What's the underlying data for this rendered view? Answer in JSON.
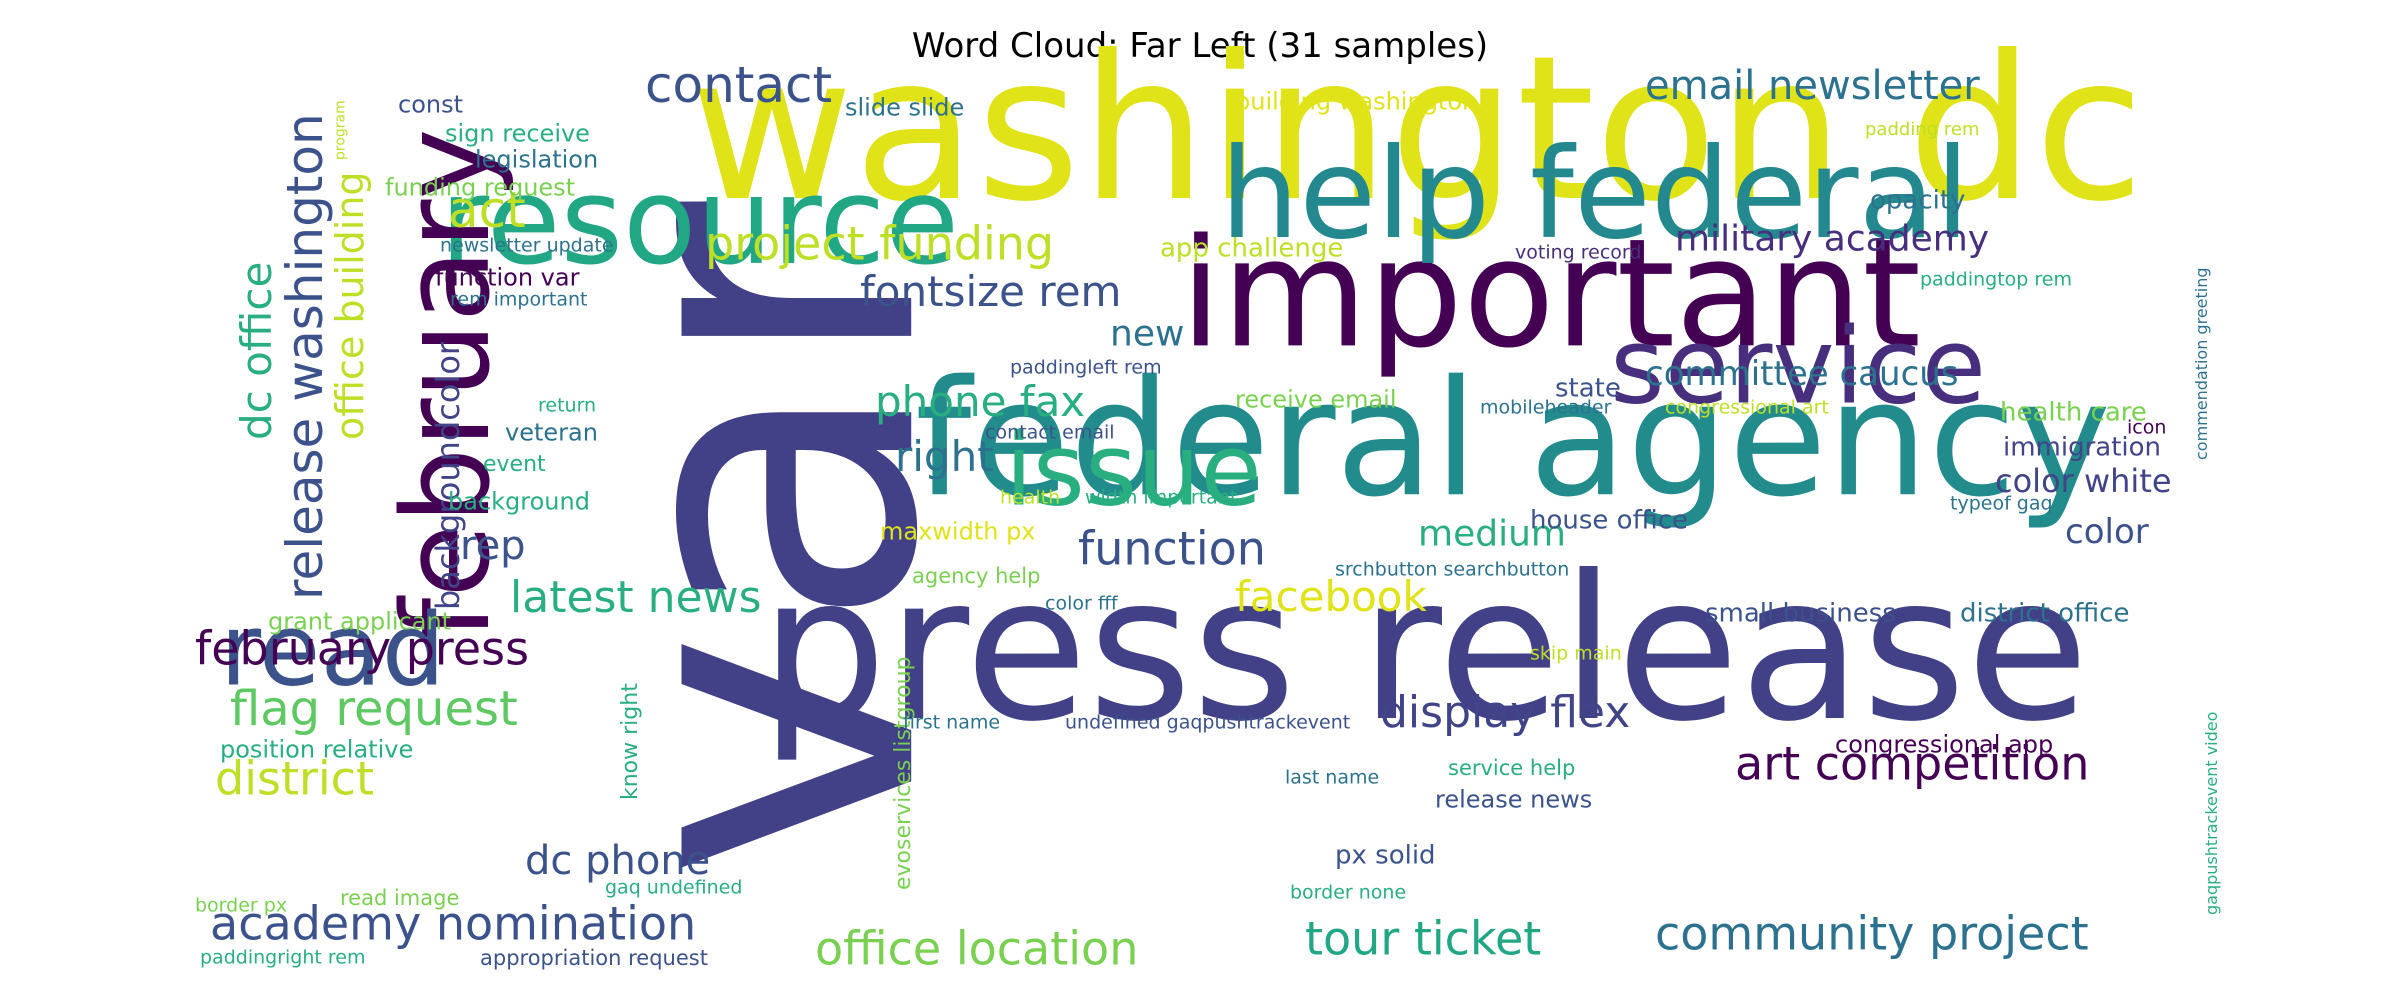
{
  "title": "Word Cloud: Far Left (31 samples)",
  "palette": {
    "p1": "#440154",
    "p2": "#472f7d",
    "p3": "#3b528b",
    "p4": "#2c728e",
    "p5": "#21918c",
    "p6": "#28ae80",
    "p7": "#5ec962",
    "p8": "#addc30",
    "p9": "#dfe318"
  },
  "words": [
    {
      "text": "var",
      "color": "#424086"
    },
    {
      "text": "washington dc",
      "color": "#dfe318"
    },
    {
      "text": "press release",
      "color": "#424086"
    },
    {
      "text": "federal agency",
      "color": "#228c8d"
    },
    {
      "text": "important",
      "color": "#440154"
    },
    {
      "text": "help federal",
      "color": "#23898e"
    },
    {
      "text": "resource",
      "color": "#22a785"
    },
    {
      "text": "february",
      "color": "#440154"
    },
    {
      "text": "service",
      "color": "#472f7d"
    },
    {
      "text": "issue",
      "color": "#29af7f"
    },
    {
      "text": "read",
      "color": "#3b528b"
    },
    {
      "text": "release washington",
      "color": "#3b528b"
    },
    {
      "text": "dc office",
      "color": "#28ae80"
    },
    {
      "text": "office building",
      "color": "#bddf26"
    },
    {
      "text": "backgroundcolor",
      "color": "#414487"
    },
    {
      "text": "contact",
      "color": "#3b528b"
    },
    {
      "text": "act",
      "color": "#bddf26"
    },
    {
      "text": "project funding",
      "color": "#bddf26"
    },
    {
      "text": "fontsize rem",
      "color": "#3b528b"
    },
    {
      "text": "email newsletter",
      "color": "#2c728e"
    },
    {
      "text": "military academy",
      "color": "#472f7d"
    },
    {
      "text": "committee caucus",
      "color": "#2c728e"
    },
    {
      "text": "phone fax",
      "color": "#28ae80"
    },
    {
      "text": "right",
      "color": "#2c728e"
    },
    {
      "text": "new",
      "color": "#2c728e"
    },
    {
      "text": "rep",
      "color": "#3b528b"
    },
    {
      "text": "function",
      "color": "#3b528b"
    },
    {
      "text": "medium",
      "color": "#28ae80"
    },
    {
      "text": "latest news",
      "color": "#28ae80"
    },
    {
      "text": "facebook",
      "color": "#dfe318"
    },
    {
      "text": "february press",
      "color": "#440154"
    },
    {
      "text": "flag request",
      "color": "#5ec962"
    },
    {
      "text": "display flex",
      "color": "#414487"
    },
    {
      "text": "district",
      "color": "#bddf26"
    },
    {
      "text": "art competition",
      "color": "#440154"
    },
    {
      "text": "dc phone",
      "color": "#3b528b"
    },
    {
      "text": "academy nomination",
      "color": "#3b528b"
    },
    {
      "text": "office location",
      "color": "#7ad151"
    },
    {
      "text": "tour ticket",
      "color": "#22a785"
    },
    {
      "text": "community project",
      "color": "#2c728e"
    },
    {
      "text": "color white",
      "color": "#414487"
    },
    {
      "text": "color",
      "color": "#3b528b"
    },
    {
      "text": "health care",
      "color": "#7ad151"
    },
    {
      "text": "immigration",
      "color": "#414487"
    },
    {
      "text": "opacity",
      "color": "#2c728e"
    },
    {
      "text": "building washington",
      "color": "#dfe318"
    },
    {
      "text": "slide slide",
      "color": "#2c728e"
    },
    {
      "text": "const",
      "color": "#3b528b"
    },
    {
      "text": "sign receive",
      "color": "#28ae80"
    },
    {
      "text": "legislation",
      "color": "#2c728e"
    },
    {
      "text": "funding request",
      "color": "#7ad151"
    },
    {
      "text": "newsletter update",
      "color": "#2c728e"
    },
    {
      "text": "function var",
      "color": "#440154"
    },
    {
      "text": "rem important",
      "color": "#2c728e"
    },
    {
      "text": "app challenge",
      "color": "#bddf26"
    },
    {
      "text": "voting record",
      "color": "#472f7d"
    },
    {
      "text": "paddingtop rem",
      "color": "#28ae80"
    },
    {
      "text": "padding rem",
      "color": "#bddf26"
    },
    {
      "text": "paddingleft rem",
      "color": "#3b528b"
    },
    {
      "text": "receive email",
      "color": "#7ad151"
    },
    {
      "text": "state",
      "color": "#3b528b"
    },
    {
      "text": "mobileheader",
      "color": "#2c728e"
    },
    {
      "text": "congressional art",
      "color": "#bddf26"
    },
    {
      "text": "return",
      "color": "#28ae80"
    },
    {
      "text": "veteran",
      "color": "#2c728e"
    },
    {
      "text": "event",
      "color": "#28ae80"
    },
    {
      "text": "background",
      "color": "#28ae80"
    },
    {
      "text": "contact email",
      "color": "#3b528b"
    },
    {
      "text": "health",
      "color": "#bddf26"
    },
    {
      "text": "width important",
      "color": "#28ae80"
    },
    {
      "text": "typeof gaq",
      "color": "#2c728e"
    },
    {
      "text": "icon",
      "color": "#440154"
    },
    {
      "text": "maxwidth px",
      "color": "#dfe318"
    },
    {
      "text": "house office",
      "color": "#3b528b"
    },
    {
      "text": "srchbutton searchbutton",
      "color": "#2c728e"
    },
    {
      "text": "agency help",
      "color": "#7ad151"
    },
    {
      "text": "color fff",
      "color": "#2c728e"
    },
    {
      "text": "grant applicant",
      "color": "#7ad151"
    },
    {
      "text": "small business",
      "color": "#3b528b"
    },
    {
      "text": "district office",
      "color": "#2c728e"
    },
    {
      "text": "skip main",
      "color": "#bddf26"
    },
    {
      "text": "position relative",
      "color": "#28ae80"
    },
    {
      "text": "evoservices listgroup",
      "color": "#7ad151"
    },
    {
      "text": "know right",
      "color": "#28ae80"
    },
    {
      "text": "first name",
      "color": "#2c728e"
    },
    {
      "text": "undefined gaqpushtrackevent",
      "color": "#3b528b"
    },
    {
      "text": "congressional app",
      "color": "#440154"
    },
    {
      "text": "service help",
      "color": "#28ae80"
    },
    {
      "text": "release news",
      "color": "#3b528b"
    },
    {
      "text": "last name",
      "color": "#2c728e"
    },
    {
      "text": "px solid",
      "color": "#3b528b"
    },
    {
      "text": "border none",
      "color": "#28ae80"
    },
    {
      "text": "gaq undefined",
      "color": "#28ae80"
    },
    {
      "text": "border px",
      "color": "#7ad151"
    },
    {
      "text": "read image",
      "color": "#7ad151"
    },
    {
      "text": "paddingright rem",
      "color": "#28ae80"
    },
    {
      "text": "appropriation request",
      "color": "#3b528b"
    },
    {
      "text": "program",
      "color": "#bddf26"
    },
    {
      "text": "commendation greeting",
      "color": "#2c728e"
    },
    {
      "text": "gaqpushtrackevent video",
      "color": "#28ae80"
    }
  ]
}
